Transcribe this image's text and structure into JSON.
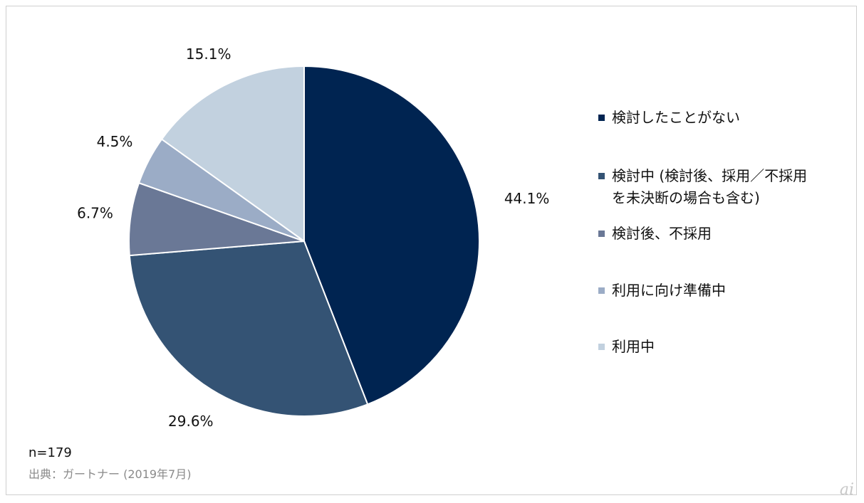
{
  "chart_data": {
    "type": "pie",
    "title": "",
    "slices": [
      {
        "label": "検討したことがない",
        "value": 44.1,
        "value_label": "44.1%",
        "color": "#002451"
      },
      {
        "label": "検討中 (検討後、採用／不採用\nを未決断の場合も含む)",
        "value": 29.6,
        "value_label": "29.6%",
        "color": "#345374"
      },
      {
        "label": "検討後、不採用",
        "value": 6.7,
        "value_label": "6.7%",
        "color": "#6a7896"
      },
      {
        "label": "利用に向け準備中",
        "value": 4.5,
        "value_label": "4.5%",
        "color": "#9bacc6"
      },
      {
        "label": "利用中",
        "value": 15.1,
        "value_label": "15.1%",
        "color": "#c2d1df"
      }
    ],
    "start_angle": "12 o'clock",
    "direction": "clockwise",
    "legend_position": "right"
  },
  "footer": {
    "sample_size": "n=179",
    "source": "出典：ガートナー (2019年7月)"
  },
  "watermark": "ai"
}
